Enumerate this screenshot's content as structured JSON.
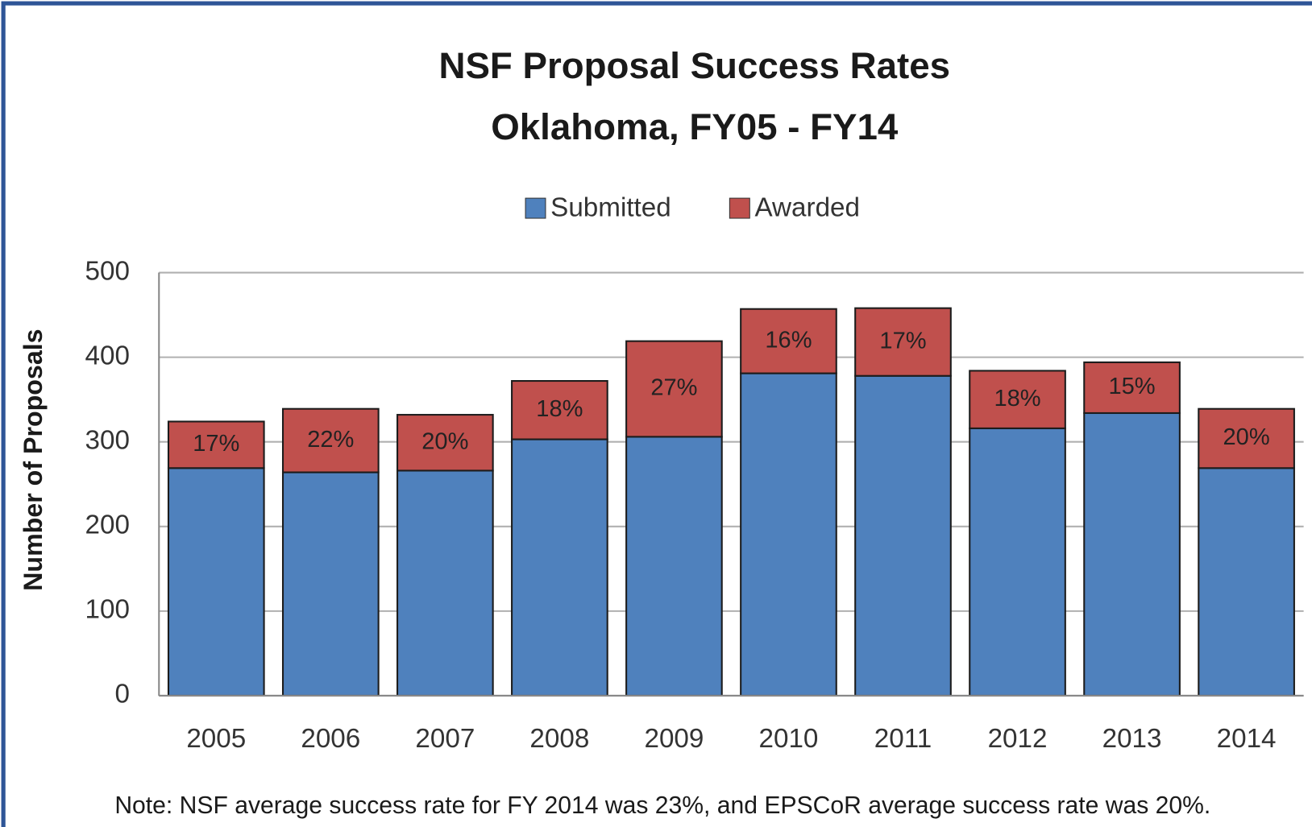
{
  "chart_data": {
    "type": "stacked_bar",
    "title": "NSF Proposal Success Rates",
    "subtitle": "Oklahoma, FY05 - FY14",
    "y_label": "Number of Proposals",
    "note": "Note: NSF average success rate for FY 2014 was 23%, and EPSCoR average success rate was 20%.",
    "categories": [
      "2005",
      "2006",
      "2007",
      "2008",
      "2009",
      "2010",
      "2011",
      "2012",
      "2013",
      "2014"
    ],
    "series": [
      {
        "name": "Submitted",
        "color": "#4f81bd",
        "values": [
          269,
          264,
          266,
          303,
          306,
          381,
          378,
          316,
          334,
          269
        ]
      },
      {
        "name": "Awarded",
        "color": "#c0504d",
        "values": [
          55,
          75,
          66,
          69,
          113,
          76,
          80,
          68,
          60,
          70
        ],
        "annotations": [
          "17%",
          "22%",
          "20%",
          "18%",
          "27%",
          "16%",
          "17%",
          "18%",
          "15%",
          "20%"
        ]
      }
    ],
    "ylim": [
      0,
      500
    ],
    "yticks": [
      0,
      100,
      200,
      300,
      400,
      500
    ],
    "grid": true,
    "legend": "top"
  }
}
